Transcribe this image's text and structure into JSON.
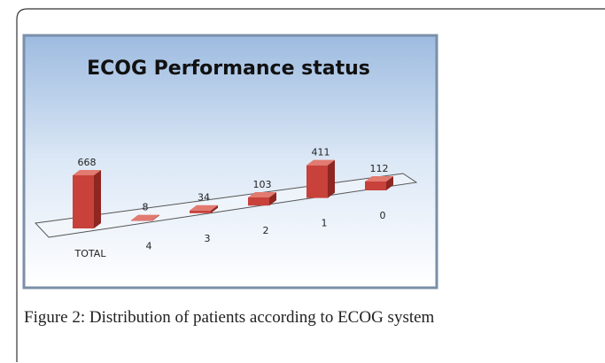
{
  "chart_data": {
    "type": "bar3d",
    "title": "ECOG Performance status",
    "categories": [
      "TOTAL",
      "4",
      "3",
      "2",
      "1",
      "0"
    ],
    "values": [
      668,
      8,
      34,
      103,
      411,
      112
    ],
    "color": "#c8413b"
  },
  "caption": "Figure 2: Distribution of patients according to ECOG system"
}
